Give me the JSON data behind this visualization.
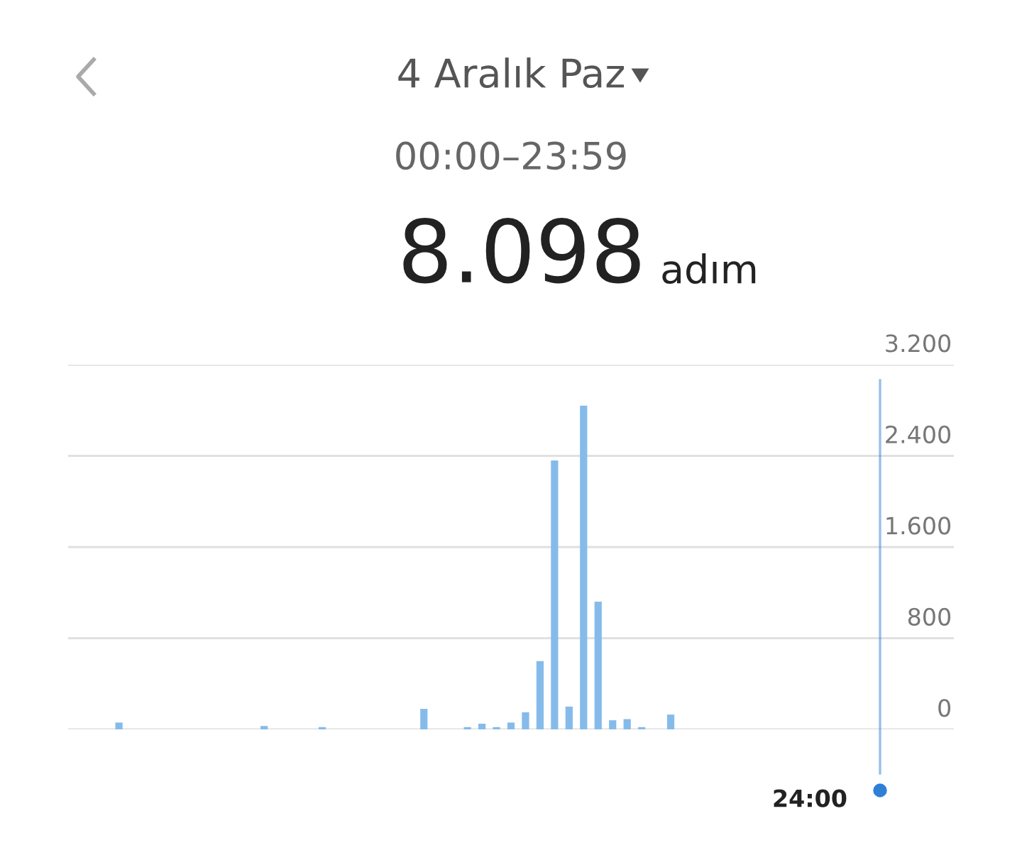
{
  "chart_data": {
    "type": "bar",
    "title": "4 Aralık Paz",
    "subtitle": "00:00–23:59",
    "annotations": [
      "8.098",
      "adım",
      "24:00"
    ],
    "categories": [
      null,
      null,
      null,
      null,
      null,
      null,
      null,
      null,
      null,
      null,
      null,
      null,
      null,
      null,
      null,
      null,
      null,
      null,
      null,
      null,
      null,
      null,
      null,
      null,
      null,
      null,
      null,
      null,
      null,
      null,
      null,
      null,
      null,
      null,
      null,
      null,
      null,
      null,
      null,
      null,
      null,
      null,
      null,
      null,
      null,
      null,
      null,
      null,
      null,
      null,
      null,
      null,
      null,
      null,
      null,
      null,
      null,
      null,
      null,
      null,
      null
    ],
    "values": [
      0,
      0,
      0,
      60,
      0,
      0,
      0,
      0,
      0,
      0,
      0,
      0,
      0,
      30,
      0,
      0,
      0,
      20,
      0,
      0,
      0,
      0,
      0,
      0,
      180,
      0,
      0,
      20,
      50,
      20,
      60,
      150,
      600,
      2360,
      200,
      2840,
      1120,
      80,
      90,
      20,
      0,
      130,
      0,
      0,
      0,
      0,
      0,
      0,
      0,
      0,
      0,
      0,
      0,
      0,
      0,
      0,
      0,
      0,
      0,
      0,
      0
    ],
    "color": "#85bbea",
    "ylim": [
      0,
      3200
    ],
    "yticks": [
      {
        "value": 0,
        "label": "0"
      },
      {
        "value": 800,
        "label": "800"
      },
      {
        "value": 1600,
        "label": "1.600"
      },
      {
        "value": 2400,
        "label": "2.400"
      },
      {
        "value": 3200,
        "label": "3.200"
      }
    ],
    "grid": "y"
  }
}
